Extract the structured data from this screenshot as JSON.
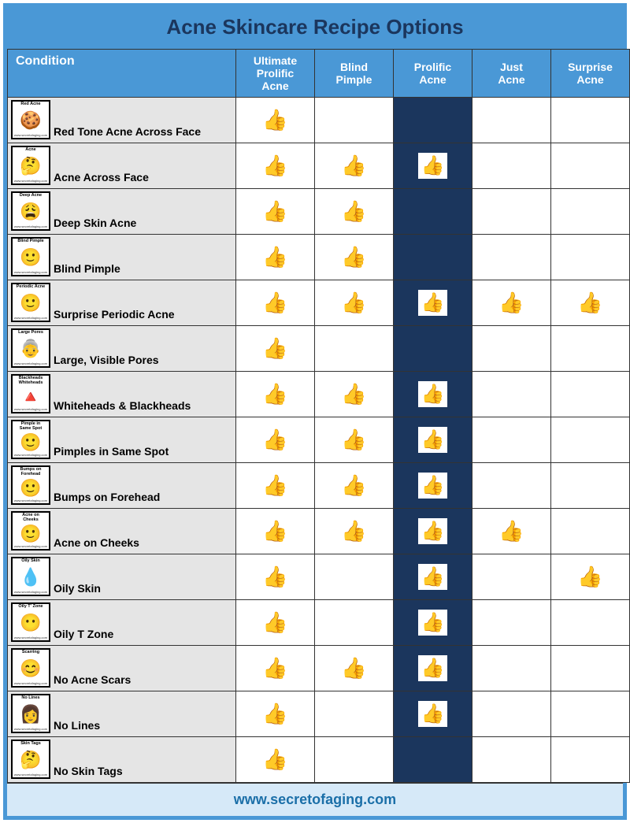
{
  "title": "Acne Skincare Recipe Options",
  "footer": "www.secretofaging.com",
  "colors": {
    "header_bg": "#4a98d6",
    "title_text": "#1b365d",
    "highlight_col_bg": "#1b365d",
    "condition_col_bg": "#e5e5e5",
    "footer_bg": "#d6e9f8",
    "footer_text": "#1b6fa8"
  },
  "columns": [
    "Condition",
    "Ultimate Prolific Acne",
    "Blind Pimple",
    "Prolific Acne",
    "Just Acne",
    "Surprise Acne"
  ],
  "highlight_col_index": 3,
  "col_widths": [
    "290px",
    "100px",
    "100px",
    "100px",
    "100px",
    "100px"
  ],
  "thumb_glyph": "👍",
  "icon_url_text": "www.secretofaging.com",
  "rows": [
    {
      "icon_label": "Red Acne",
      "icon_emoji": "🍪",
      "label": "Red Tone Acne Across Face",
      "checks": [
        true,
        false,
        false,
        false,
        false
      ]
    },
    {
      "icon_label": "Acne",
      "icon_emoji": "🤔",
      "label": "Acne Across Face",
      "checks": [
        true,
        true,
        true,
        false,
        false
      ]
    },
    {
      "icon_label": "Deep Acne",
      "icon_emoji": "😩",
      "label": "Deep Skin Acne",
      "checks": [
        true,
        true,
        false,
        false,
        false
      ]
    },
    {
      "icon_label": "Blind Pimple",
      "icon_emoji": "🙂",
      "label": "Blind Pimple",
      "checks": [
        true,
        true,
        false,
        false,
        false
      ]
    },
    {
      "icon_label": "Periodic Acne",
      "icon_emoji": "🙂",
      "label": "Surprise Periodic Acne",
      "checks": [
        true,
        true,
        true,
        true,
        true
      ]
    },
    {
      "icon_label": "Large Pores",
      "icon_emoji": "👵",
      "label": "Large, Visible Pores",
      "checks": [
        true,
        false,
        false,
        false,
        false
      ]
    },
    {
      "icon_label": "Blackheads\nWhiteheads",
      "icon_emoji": "🔺",
      "label": "Whiteheads & Blackheads",
      "checks": [
        true,
        true,
        true,
        false,
        false
      ]
    },
    {
      "icon_label": "Pimple in\nSame Spot",
      "icon_emoji": "🙂",
      "label": "Pimples in Same Spot",
      "checks": [
        true,
        true,
        true,
        false,
        false
      ]
    },
    {
      "icon_label": "Bumps on\nForehead",
      "icon_emoji": "🙂",
      "label": "Bumps on Forehead",
      "checks": [
        true,
        true,
        true,
        false,
        false
      ]
    },
    {
      "icon_label": "Acne on\nCheeks",
      "icon_emoji": "🙂",
      "label": "Acne on Cheeks",
      "checks": [
        true,
        true,
        true,
        true,
        false
      ]
    },
    {
      "icon_label": "Oily Skin",
      "icon_emoji": "💧",
      "label": "Oily Skin",
      "checks": [
        true,
        false,
        true,
        false,
        true
      ]
    },
    {
      "icon_label": "Oily T' Zone",
      "icon_emoji": "😶",
      "label": "Oily T Zone",
      "checks": [
        true,
        false,
        true,
        false,
        false
      ]
    },
    {
      "icon_label": "Scarring",
      "icon_emoji": "😊",
      "label": "No Acne Scars",
      "checks": [
        true,
        true,
        true,
        false,
        false
      ]
    },
    {
      "icon_label": "No Lines",
      "icon_emoji": "👩",
      "label": "No Lines",
      "checks": [
        true,
        false,
        true,
        false,
        false
      ]
    },
    {
      "icon_label": "Skin Tags",
      "icon_emoji": "🤔",
      "label": "No Skin Tags",
      "checks": [
        true,
        false,
        false,
        false,
        false
      ]
    }
  ]
}
